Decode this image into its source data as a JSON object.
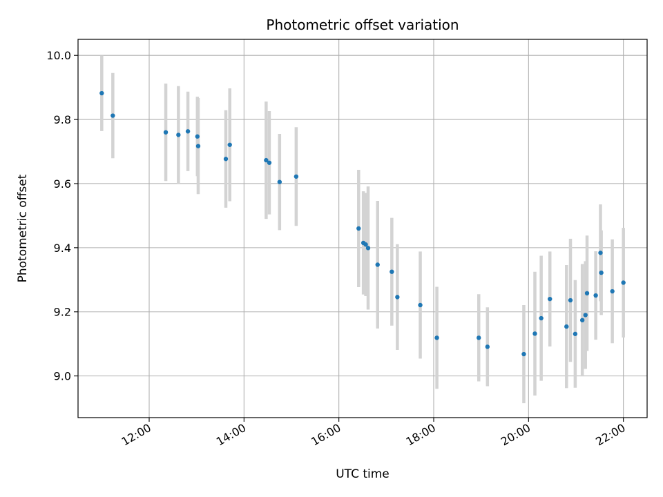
{
  "chart_data": {
    "type": "scatter",
    "title": "Photometric offset variation",
    "xlabel": "UTC time",
    "ylabel": "Photometric offset",
    "grid": true,
    "xlim": [
      "10:30",
      "22:30"
    ],
    "ylim": [
      8.87,
      10.05
    ],
    "x_ticks": [
      "12:00",
      "14:00",
      "16:00",
      "18:00",
      "20:00",
      "22:00"
    ],
    "y_ticks": [
      "9.0",
      "9.2",
      "9.4",
      "9.6",
      "9.8",
      "10.0"
    ],
    "colors": {
      "marker": "#1f77b4",
      "errorbar": "#d3d3d3",
      "grid": "#b0b0b0"
    },
    "points": [
      {
        "x": "11:00",
        "y": 9.882,
        "yerr": 0.118
      },
      {
        "x": "11:14",
        "y": 9.812,
        "yerr": 0.133
      },
      {
        "x": "12:21",
        "y": 9.76,
        "yerr": 0.152
      },
      {
        "x": "12:37",
        "y": 9.752,
        "yerr": 0.152
      },
      {
        "x": "12:49",
        "y": 9.763,
        "yerr": 0.124
      },
      {
        "x": "13:01",
        "y": 9.747,
        "yerr": 0.124
      },
      {
        "x": "13:02",
        "y": 9.717,
        "yerr": 0.15
      },
      {
        "x": "13:37",
        "y": 9.677,
        "yerr": 0.152
      },
      {
        "x": "13:42",
        "y": 9.721,
        "yerr": 0.176
      },
      {
        "x": "14:28",
        "y": 9.673,
        "yerr": 0.183
      },
      {
        "x": "14:32",
        "y": 9.665,
        "yerr": 0.161
      },
      {
        "x": "14:45",
        "y": 9.605,
        "yerr": 0.15
      },
      {
        "x": "15:06",
        "y": 9.622,
        "yerr": 0.154
      },
      {
        "x": "16:25",
        "y": 9.46,
        "yerr": 0.183
      },
      {
        "x": "16:31",
        "y": 9.415,
        "yerr": 0.161
      },
      {
        "x": "16:34",
        "y": 9.41,
        "yerr": 0.161
      },
      {
        "x": "16:37",
        "y": 9.399,
        "yerr": 0.192
      },
      {
        "x": "16:49",
        "y": 9.347,
        "yerr": 0.199
      },
      {
        "x": "17:07",
        "y": 9.325,
        "yerr": 0.168
      },
      {
        "x": "17:14",
        "y": 9.246,
        "yerr": 0.165
      },
      {
        "x": "17:43",
        "y": 9.221,
        "yerr": 0.167
      },
      {
        "x": "18:04",
        "y": 9.119,
        "yerr": 0.159
      },
      {
        "x": "18:57",
        "y": 9.119,
        "yerr": 0.136
      },
      {
        "x": "19:08",
        "y": 9.091,
        "yerr": 0.123
      },
      {
        "x": "19:54",
        "y": 9.068,
        "yerr": 0.153
      },
      {
        "x": "20:08",
        "y": 9.132,
        "yerr": 0.193
      },
      {
        "x": "20:16",
        "y": 9.18,
        "yerr": 0.195
      },
      {
        "x": "20:27",
        "y": 9.24,
        "yerr": 0.148
      },
      {
        "x": "20:48",
        "y": 9.154,
        "yerr": 0.192
      },
      {
        "x": "20:53",
        "y": 9.236,
        "yerr": 0.192
      },
      {
        "x": "20:59",
        "y": 9.131,
        "yerr": 0.168
      },
      {
        "x": "21:08",
        "y": 9.174,
        "yerr": 0.175
      },
      {
        "x": "21:12",
        "y": 9.19,
        "yerr": 0.168
      },
      {
        "x": "21:14",
        "y": 9.258,
        "yerr": 0.18
      },
      {
        "x": "21:25",
        "y": 9.251,
        "yerr": 0.138
      },
      {
        "x": "21:31",
        "y": 9.384,
        "yerr": 0.151
      },
      {
        "x": "21:32",
        "y": 9.322,
        "yerr": 0.132
      },
      {
        "x": "21:46",
        "y": 9.264,
        "yerr": 0.162
      },
      {
        "x": "22:00",
        "y": 9.291,
        "yerr": 0.171
      }
    ]
  }
}
